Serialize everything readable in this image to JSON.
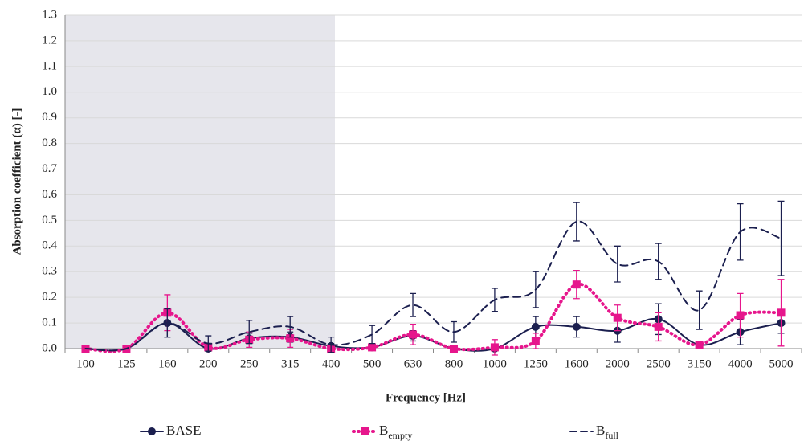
{
  "chart_data": {
    "type": "line",
    "xlabel": "Frequency [Hz]",
    "ylabel": "Absorption coefficient (α)  [-]",
    "categories": [
      "100",
      "125",
      "160",
      "200",
      "250",
      "315",
      "400",
      "500",
      "630",
      "800",
      "1000",
      "1250",
      "1600",
      "2000",
      "2500",
      "3150",
      "4000",
      "5000"
    ],
    "ylim": [
      0,
      1.3
    ],
    "yticks": [
      {
        "value": 0,
        "label": "0.0"
      },
      0.1,
      0.2,
      0.3,
      0.4,
      0.5,
      0.6,
      0.7,
      0.8,
      0.9,
      {
        "value": 1,
        "label": "1.0"
      },
      1.1,
      1.2,
      1.3
    ],
    "grid": true,
    "series": [
      {
        "name": "BASE",
        "color": "#1b1f4f",
        "style": "solid",
        "marker": "circle",
        "values": [
          0,
          0,
          0.1,
          0.0,
          0.04,
          0.045,
          0.01,
          0.005,
          0.05,
          0,
          0,
          0.085,
          0.085,
          0.07,
          0.115,
          0.015,
          0.065,
          0.1
        ],
        "errors": [
          0,
          0,
          0.055,
          0,
          0.02,
          0.02,
          0.01,
          0.005,
          0.02,
          0,
          0,
          0.04,
          0.04,
          0.045,
          0.06,
          0.01,
          0.05,
          0.04
        ]
      },
      {
        "name": "B",
        "subscript": "empty",
        "color": "#e6168c",
        "style": "dotted",
        "marker": "square",
        "values": [
          0,
          0,
          0.14,
          0.005,
          0.035,
          0.04,
          0,
          0.005,
          0.055,
          0,
          0.005,
          0.03,
          0.25,
          0.12,
          0.085,
          0.015,
          0.13,
          0.14
        ],
        "errors": [
          0,
          0,
          0.07,
          0.01,
          0.03,
          0.035,
          0,
          0.005,
          0.04,
          0,
          0.03,
          0.03,
          0.055,
          0.05,
          0.055,
          0.01,
          0.085,
          0.13
        ]
      },
      {
        "name": "B",
        "subscript": "full",
        "color": "#1b1f4f",
        "style": "dashed",
        "marker": "none",
        "values": [
          0,
          0,
          0.1,
          0.02,
          0.065,
          0.085,
          0.015,
          0.055,
          0.17,
          0.065,
          0.19,
          0.23,
          0.495,
          0.33,
          0.34,
          0.15,
          0.455,
          0.43
        ],
        "errors": [
          0,
          0,
          0.055,
          0.03,
          0.045,
          0.04,
          0.03,
          0.035,
          0.045,
          0.04,
          0.045,
          0.07,
          0.075,
          0.07,
          0.07,
          0.075,
          0.11,
          0.145
        ]
      }
    ]
  }
}
